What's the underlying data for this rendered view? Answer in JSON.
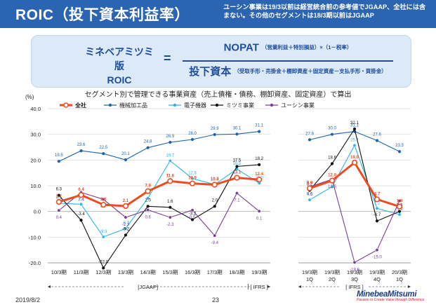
{
  "header": {
    "title": "ROIC（投下資本利益率）",
    "note": "ユーシン事業は19/3以前は経営統合前の参考値でJGAAP、全社には含まない。その他のセグメントは18/3期以前はJGAAP"
  },
  "formula": {
    "lhs_line1": "ミネベアミツミ版",
    "lhs_line2": "ROIC",
    "equals": "=",
    "numerator": "NOPAT",
    "numerator_detail": "（営業利益＋特別損益）×（1－税率）",
    "denominator": "投下資本",
    "denominator_detail": "（受取手形・売掛金＋棚卸資産＋固定資産－支払手形・買掛金）"
  },
  "subtitle": "セグメント別で管理できる事業資産（売上債権・債務、棚卸資産、固定資産）で算出",
  "footer": {
    "date": "2019/8/2",
    "page": "23",
    "logo": "MinebeaMitsumi",
    "logo_tagline": "Passion to Create Value through Difference"
  },
  "chart_data": {
    "type": "line",
    "y_unit_label": "(%)",
    "ylim": [
      -20,
      40
    ],
    "yticks": [
      "40.0",
      "30.0",
      "20.0",
      "10.0",
      "0.0",
      "-10.0",
      "-20.0"
    ],
    "grid": true,
    "legend_position": "top",
    "colors": {
      "全社": "#ee4b1f",
      "機械加工品": "#1c63ad",
      "電子機器": "#2ab4ea",
      "ミツミ事業": "#111111",
      "ユーシン事業": "#7a3e98"
    },
    "panels": [
      {
        "categories": [
          [
            "10/3期"
          ],
          [
            "11/3期"
          ],
          [
            "12/3期"
          ],
          [
            "13/3期"
          ],
          [
            "14/3期"
          ],
          [
            "15/3期"
          ],
          [
            "16/3期"
          ],
          [
            "17/3期"
          ],
          [
            "18/3期"
          ],
          [
            "19/3期"
          ]
        ],
        "bracket_labels": [
          "[JGAAP]",
          "[ IFRS ]"
        ],
        "series": [
          {
            "name": "全社",
            "values": [
              3.7,
              6.4,
              2.6,
              2.1,
              7.9,
              11.8,
              10.9,
              10.4,
              13.1,
              12.4
            ]
          },
          {
            "name": "機械加工品",
            "values": [
              19.5,
              23.6,
              22.5,
              20.1,
              24.8,
              26.9,
              28.0,
              29.9,
              30.1,
              31.1
            ]
          },
          {
            "name": "電子機器",
            "values": [
              3.2,
              2.8,
              -9.9,
              -6.7,
              5.2,
              19.7,
              12.8,
              10.5,
              16.5,
              11.0
            ]
          },
          {
            "name": "ミツミ事業",
            "values": [
              6.3,
              -3.4,
              -22.0,
              -9.2,
              2.0,
              1.6,
              -3.2,
              2.0,
              17.5,
              18.2
            ]
          },
          {
            "name": "ユーシン事業",
            "values": [
              0.4,
              7.4,
              4.7,
              -2.3,
              0.6,
              -2.3,
              0.5,
              -9.4,
              7.1,
              0.1
            ]
          }
        ]
      },
      {
        "categories": [
          [
            "19/3期",
            "1Q"
          ],
          [
            "19/3期",
            "2Q"
          ],
          [
            "19/3期",
            "3Q"
          ],
          [
            "19/3期",
            "4Q"
          ],
          [
            "20/3期",
            "1Q"
          ]
        ],
        "bracket_labels": [
          "[ IFRS ]"
        ],
        "series": [
          {
            "name": "全社",
            "values": [
              9.0,
              12.0,
              19.0,
              4.7,
              1.9
            ]
          },
          {
            "name": "機械加工品",
            "values": [
              27.9,
              30.0,
              31.1,
              27.6,
              23.3
            ]
          },
          {
            "name": "電子機器",
            "values": [
              4.5,
              9.6,
              25.7,
              1.2,
              -1.2
            ]
          },
          {
            "name": "ミツミ事業",
            "values": [
              8.2,
              18.6,
              32.1,
              -3.7,
              0.0
            ]
          },
          {
            "name": "ユーシン事業",
            "values": [
              9.6,
              12.5,
              -19.8,
              -15.0,
              4.1
            ]
          }
        ]
      }
    ]
  }
}
